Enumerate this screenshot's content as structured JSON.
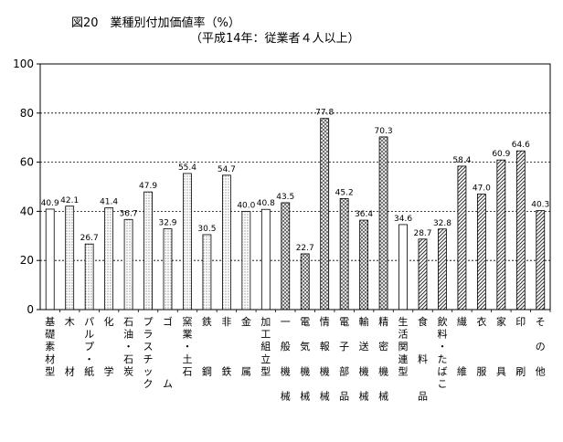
{
  "chart_data": {
    "type": "bar",
    "title": "図20　業種別付加価値率（%）",
    "subtitle": "（平成14年：従業者４人以上）",
    "xlabel": "",
    "ylabel": "",
    "ylim": [
      0,
      100
    ],
    "yticks": [
      0,
      20,
      40,
      60,
      80,
      100
    ],
    "grid": "dashed horizontal at 20, 40, 60, 80",
    "legend": "none",
    "categories": [
      "基礎素材型",
      "木材",
      "パルプ・紙",
      "化学",
      "石油・石炭",
      "プラスチック",
      "ゴム",
      "窯業・土石",
      "鉄鋼",
      "非鉄",
      "金属",
      "加工組立型",
      "一般機械",
      "電気機械",
      "情報機械",
      "電子部品",
      "輸送機械",
      "精密機械",
      "生活関連型",
      "食料品",
      "飲料・たばこ",
      "繊維",
      "衣服",
      "家具",
      "印刷",
      "その他"
    ],
    "values": [
      40.9,
      42.1,
      26.7,
      41.4,
      36.7,
      47.9,
      32.9,
      55.4,
      30.5,
      54.7,
      40.0,
      40.8,
      43.5,
      22.7,
      77.8,
      45.2,
      36.4,
      70.3,
      34.6,
      28.7,
      32.8,
      58.4,
      47.0,
      60.9,
      64.6,
      40.3
    ],
    "value_labels": [
      "40.9",
      "42.1",
      "26.7",
      "41.4",
      "36.7",
      "47.9",
      "32.9",
      "55.4",
      "30.5",
      "54.7",
      "40.0",
      "40.8",
      "43.5",
      "22.7",
      "77.8",
      "45.2",
      "36.4",
      "70.3",
      "34.6",
      "28.7",
      "32.8",
      "58.4",
      "47.0",
      "60.9",
      "64.6",
      "40.3"
    ],
    "tick_labels": [
      [
        "基",
        "礎",
        "素",
        "材",
        "型"
      ],
      [
        "木",
        "材"
      ],
      [
        "パ",
        "ル",
        "プ",
        "・",
        "紙"
      ],
      [
        "化",
        "学"
      ],
      [
        "石",
        "油",
        "・",
        "石",
        "炭"
      ],
      [
        "プ",
        "ラ",
        "ス",
        "チ",
        "ッ",
        "ク"
      ],
      [
        "ゴ",
        "ム"
      ],
      [
        "窯",
        "業",
        "・",
        "土",
        "石"
      ],
      [
        "鉄",
        "鋼"
      ],
      [
        "非",
        "鉄"
      ],
      [
        "金",
        "属"
      ],
      [
        "加",
        "工",
        "組",
        "立",
        "型"
      ],
      [
        "一",
        "般",
        "機",
        "械"
      ],
      [
        "電",
        "気",
        "機",
        "械"
      ],
      [
        "情",
        "報",
        "機",
        "械"
      ],
      [
        "電",
        "子",
        "部",
        "品"
      ],
      [
        "輸",
        "送",
        "機",
        "械"
      ],
      [
        "精",
        "密",
        "機",
        "械"
      ],
      [
        "生",
        "活",
        "関",
        "連",
        "型"
      ],
      [
        "食",
        "料",
        "品"
      ],
      [
        "飲",
        "料",
        "・",
        "た",
        "ば",
        "こ"
      ],
      [
        "繊",
        "維"
      ],
      [
        "衣",
        "服"
      ],
      [
        "家",
        "具"
      ],
      [
        "印",
        "刷"
      ],
      [
        "そ",
        "の",
        "他"
      ]
    ],
    "label_layout": [
      [
        0,
        1,
        2,
        3,
        4
      ],
      [
        0,
        4
      ],
      [
        0,
        1,
        2,
        3,
        4
      ],
      [
        0,
        4
      ],
      [
        0,
        1,
        2,
        3,
        4
      ],
      [
        0,
        1,
        2,
        3,
        4,
        5
      ],
      [
        0,
        5
      ],
      [
        0,
        1,
        2,
        3,
        4
      ],
      [
        0,
        4
      ],
      [
        0,
        4
      ],
      [
        0,
        4
      ],
      [
        0,
        1,
        2,
        3,
        4
      ],
      [
        0,
        2,
        4,
        6
      ],
      [
        0,
        2,
        4,
        6
      ],
      [
        0,
        2,
        4,
        6
      ],
      [
        0,
        2,
        4,
        6
      ],
      [
        0,
        2,
        4,
        6
      ],
      [
        0,
        2,
        4,
        6
      ],
      [
        0,
        1,
        2,
        3,
        4
      ],
      [
        0,
        3,
        6
      ],
      [
        0,
        1,
        2,
        3,
        4,
        5
      ],
      [
        0,
        4
      ],
      [
        0,
        4
      ],
      [
        0,
        4
      ],
      [
        0,
        4
      ],
      [
        0,
        2,
        4
      ]
    ],
    "groups": [
      "summary",
      "basic",
      "basic",
      "basic",
      "basic",
      "basic",
      "basic",
      "basic",
      "basic",
      "basic",
      "basic",
      "summary",
      "assembly",
      "assembly",
      "assembly",
      "assembly",
      "assembly",
      "assembly",
      "summary",
      "living",
      "living",
      "living",
      "living",
      "living",
      "living",
      "living"
    ],
    "group_fills": {
      "summary": "#ffffff",
      "basic": "dots",
      "assembly": "crosshatch",
      "living": "diagonal"
    }
  }
}
